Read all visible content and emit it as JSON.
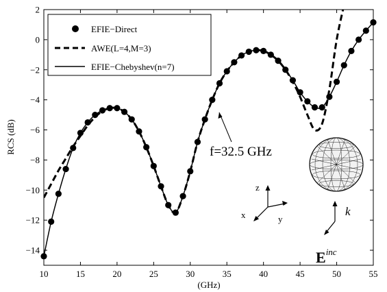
{
  "chart_data": {
    "type": "line",
    "xlabel": "(GHz)",
    "ylabel": "RCS (dB)",
    "xlim": [
      10,
      55
    ],
    "ylim": [
      -15,
      2
    ],
    "xticks": [
      10,
      15,
      20,
      25,
      30,
      35,
      40,
      45,
      50,
      55
    ],
    "yticks": [
      2,
      0,
      -2,
      -4,
      -6,
      -8,
      -10,
      -12,
      -14
    ],
    "grid": false,
    "legend_position": "top-left",
    "series": [
      {
        "name": "EFIE−Direct",
        "style": "markers",
        "color": "#000000",
        "x": [
          10,
          11,
          12,
          13,
          14,
          15,
          16,
          17,
          18,
          19,
          20,
          21,
          22,
          23,
          24,
          25,
          26,
          27,
          28,
          29,
          30,
          31,
          32,
          33,
          34,
          35,
          36,
          37,
          38,
          39,
          40,
          41,
          42,
          43,
          44,
          45,
          46,
          47,
          48,
          49,
          50,
          51,
          52,
          53,
          54,
          55
        ],
        "y": [
          -14.4,
          -12.1,
          -10.25,
          -8.6,
          -7.2,
          -6.2,
          -5.5,
          -5.0,
          -4.7,
          -4.55,
          -4.55,
          -4.8,
          -5.3,
          -6.1,
          -7.15,
          -8.4,
          -9.75,
          -11.0,
          -11.5,
          -10.4,
          -8.75,
          -6.8,
          -5.3,
          -4.0,
          -2.9,
          -2.1,
          -1.5,
          -1.05,
          -0.8,
          -0.7,
          -0.75,
          -1.0,
          -1.4,
          -2.0,
          -2.7,
          -3.5,
          -4.1,
          -4.5,
          -4.5,
          -3.8,
          -2.8,
          -1.7,
          -0.75,
          0.0,
          0.6,
          1.15
        ]
      },
      {
        "name": "AWE(L=4,M=3)",
        "style": "dashed",
        "color": "#000000",
        "x": [
          10,
          11,
          12,
          13,
          14,
          15,
          16,
          17,
          18,
          19,
          20,
          21,
          22,
          23,
          24,
          25,
          26,
          27,
          28,
          29,
          30,
          31,
          32,
          33,
          34,
          35,
          36,
          37,
          38,
          39,
          40,
          41,
          42,
          43,
          44,
          45,
          46,
          47,
          48,
          49,
          50,
          51
        ],
        "y": [
          -10.5,
          -9.6,
          -8.7,
          -7.9,
          -7.1,
          -6.4,
          -5.7,
          -5.15,
          -4.75,
          -4.55,
          -4.55,
          -4.8,
          -5.3,
          -6.1,
          -7.15,
          -8.4,
          -9.75,
          -11.0,
          -11.5,
          -10.4,
          -8.75,
          -6.8,
          -5.3,
          -4.0,
          -2.9,
          -2.1,
          -1.5,
          -1.05,
          -0.8,
          -0.7,
          -0.75,
          -1.0,
          -1.4,
          -2.0,
          -2.8,
          -3.8,
          -5.0,
          -6.0,
          -5.6,
          -3.3,
          0.0,
          2.3
        ]
      },
      {
        "name": "EFIE−Chebyshev(n=7)",
        "style": "solid",
        "color": "#000000",
        "x": [
          10,
          11,
          12,
          13,
          14,
          15,
          16,
          17,
          18,
          19,
          20,
          21,
          22,
          23,
          24,
          25,
          26,
          27,
          28,
          29,
          30,
          31,
          32,
          33,
          34,
          35,
          36,
          37,
          38,
          39,
          40,
          41,
          42,
          43,
          44,
          45,
          46,
          47,
          48,
          49,
          50,
          51,
          52,
          53,
          54,
          55
        ],
        "y": [
          -14.4,
          -12.1,
          -10.25,
          -8.6,
          -7.2,
          -6.2,
          -5.5,
          -5.0,
          -4.7,
          -4.55,
          -4.55,
          -4.8,
          -5.3,
          -6.1,
          -7.15,
          -8.4,
          -9.75,
          -11.0,
          -11.5,
          -10.4,
          -8.75,
          -6.8,
          -5.3,
          -4.0,
          -2.9,
          -2.1,
          -1.5,
          -1.05,
          -0.8,
          -0.7,
          -0.75,
          -1.0,
          -1.4,
          -2.0,
          -2.7,
          -3.5,
          -4.1,
          -4.5,
          -4.5,
          -3.8,
          -2.8,
          -1.7,
          -0.75,
          0.0,
          0.6,
          1.15
        ]
      }
    ],
    "annotations": [
      {
        "text": "f=32.5 GHz",
        "points_to": {
          "x": 32.5,
          "y": -4.7
        }
      }
    ],
    "inset": {
      "object": "meshed-sphere",
      "axes_labels": {
        "z": "z",
        "x": "x",
        "y": "y"
      },
      "wave_vector_label": "k",
      "field_label_base": "E",
      "field_label_sup": "inc"
    }
  }
}
